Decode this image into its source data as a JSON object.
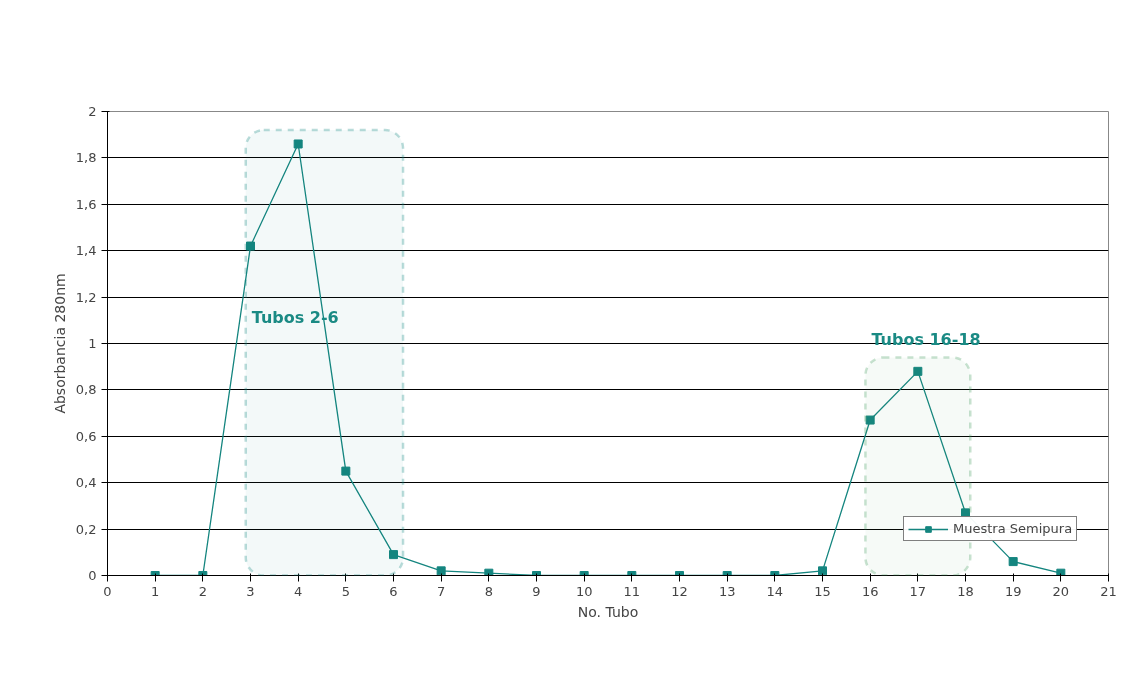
{
  "chart_data": {
    "type": "line",
    "xlabel": "No. Tubo",
    "ylabel": "Absorbancia 280nm",
    "x": [
      1,
      2,
      3,
      4,
      5,
      6,
      7,
      8,
      9,
      10,
      11,
      12,
      13,
      14,
      15,
      16,
      17,
      18,
      19,
      20
    ],
    "series": [
      {
        "name": "Muestra Semipura",
        "color": "#14857f",
        "values": [
          0,
          0,
          1.42,
          1.86,
          0.45,
          0.09,
          0.02,
          0.01,
          0,
          0,
          0,
          0,
          0,
          0,
          0.02,
          0.67,
          0.88,
          0.27,
          0.06,
          0.01
        ]
      }
    ],
    "xlim": [
      0,
      21
    ],
    "xticks": [
      0,
      1,
      2,
      3,
      4,
      5,
      6,
      7,
      8,
      9,
      10,
      11,
      12,
      13,
      14,
      15,
      16,
      17,
      18,
      19,
      20,
      21
    ],
    "ylim": [
      0,
      2
    ],
    "yticks": [
      0,
      {
        "value": 0.2,
        "label": "0,2"
      },
      {
        "value": 0.4,
        "label": "0,4"
      },
      {
        "value": 0.6,
        "label": "0,6"
      },
      {
        "value": 0.8,
        "label": "0,8"
      },
      1,
      {
        "value": 1.2,
        "label": "1,2"
      },
      {
        "value": 1.4,
        "label": "1,4"
      },
      {
        "value": 1.6,
        "label": "1,6"
      },
      {
        "value": 1.8,
        "label": "1,8"
      },
      2
    ],
    "bands": [
      {
        "axis": "x",
        "from": 2.9,
        "to": 6.2,
        "color": "#1a8a84",
        "label": "Tubos 2-6"
      },
      {
        "axis": "x",
        "from": 15.9,
        "to": 18.1,
        "color": "#4a9e62",
        "label": "Tubos 16-18"
      }
    ],
    "grid": "y",
    "legend": "bottom right",
    "marker": "square",
    "line_style": "solid"
  }
}
